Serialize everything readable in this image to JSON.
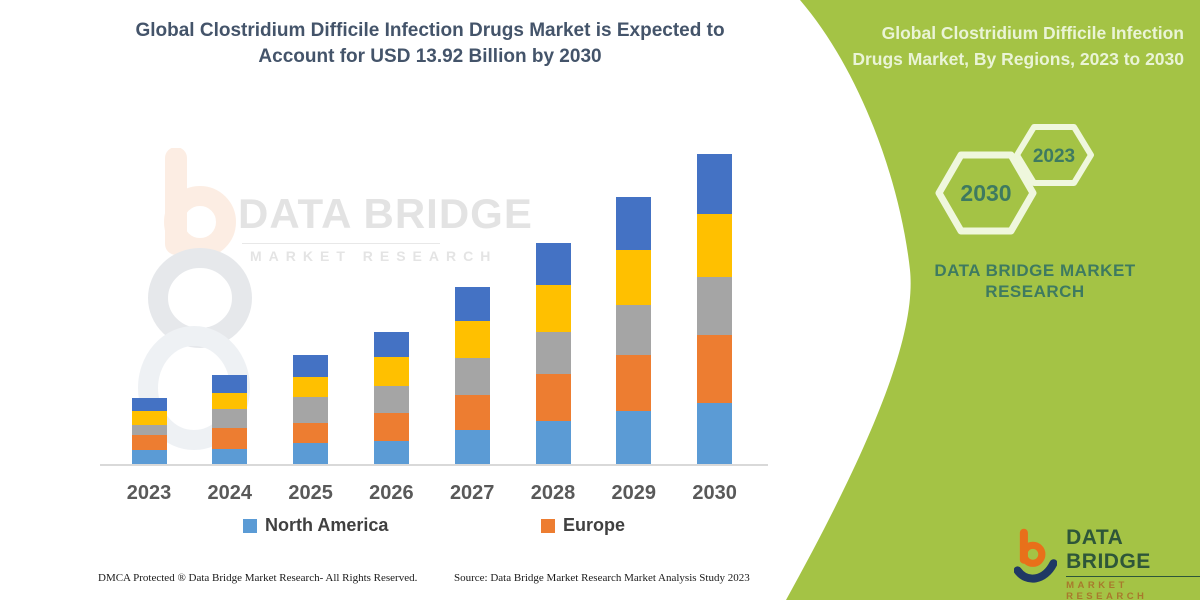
{
  "page": {
    "background": "#FFFFFF"
  },
  "left_panel": {
    "title": "Global Clostridium Difficile Infection Drugs Market is Expected to Account for USD 13.92 Billion by 2030",
    "title_color": "#44546A",
    "watermark": {
      "brand": "DATA BRIDGE",
      "sub": "MARKET RESEARCH"
    },
    "footer": {
      "left": "DMCA Protected ® Data Bridge Market Research-  All Rights Reserved.",
      "right": "Source: Data Bridge Market Research  Market Analysis Study 2023"
    }
  },
  "right_panel": {
    "background_color": "#A4C345",
    "title": "Global Clostridium Difficile Infection Drugs Market, By Regions, 2023 to 2030",
    "title_color": "#EAF4D6",
    "hexagons": [
      {
        "year": "2030"
      },
      {
        "year": "2023"
      }
    ],
    "hexagon_outline_color": "#EFF7DD",
    "brand_text": "DATA BRIDGE MARKET RESEARCH",
    "brand_text_color": "#3E7A60",
    "logo": {
      "name": "DATA BRIDGE",
      "sub": "MARKET RESEARCH"
    }
  },
  "chart_data": {
    "type": "bar",
    "stacked": true,
    "title": "Global Clostridium Difficile Infection Drugs Market is Expected to Account for USD 13.92 Billion by 2030",
    "unit": "USD Billion",
    "categories": [
      "2023",
      "2024",
      "2025",
      "2026",
      "2027",
      "2028",
      "2029",
      "2030"
    ],
    "series": [
      {
        "name": "North America",
        "color": "#5B9BD5",
        "in_legend": true,
        "values": [
          0.64,
          0.69,
          0.93,
          1.05,
          1.53,
          1.94,
          2.37,
          2.74
        ]
      },
      {
        "name": "Europe",
        "color": "#ED7D31",
        "in_legend": true,
        "values": [
          0.64,
          0.93,
          0.9,
          1.26,
          1.57,
          2.1,
          2.51,
          3.04
        ]
      },
      {
        "name": "Unlabeled (gray)",
        "color": "#A5A5A5",
        "in_legend": false,
        "values": [
          0.48,
          0.87,
          1.2,
          1.2,
          1.65,
          1.89,
          2.25,
          2.6
        ]
      },
      {
        "name": "Unlabeled (yellow)",
        "color": "#FFC000",
        "in_legend": false,
        "values": [
          0.63,
          0.7,
          0.9,
          1.29,
          1.69,
          2.1,
          2.5,
          2.84
        ]
      },
      {
        "name": "Unlabeled (dark blue)",
        "color": "#4472C4",
        "in_legend": false,
        "values": [
          0.57,
          0.79,
          0.97,
          1.15,
          1.5,
          1.9,
          2.35,
          2.7
        ]
      }
    ],
    "totals": [
      2.96,
      3.98,
      4.89,
      5.93,
      7.94,
      9.92,
      11.98,
      13.92
    ],
    "y_axis_visible": false,
    "axis_line_color": "#D9D9D9",
    "x_axis_label_color": "#595959",
    "legend_position": "bottom"
  }
}
